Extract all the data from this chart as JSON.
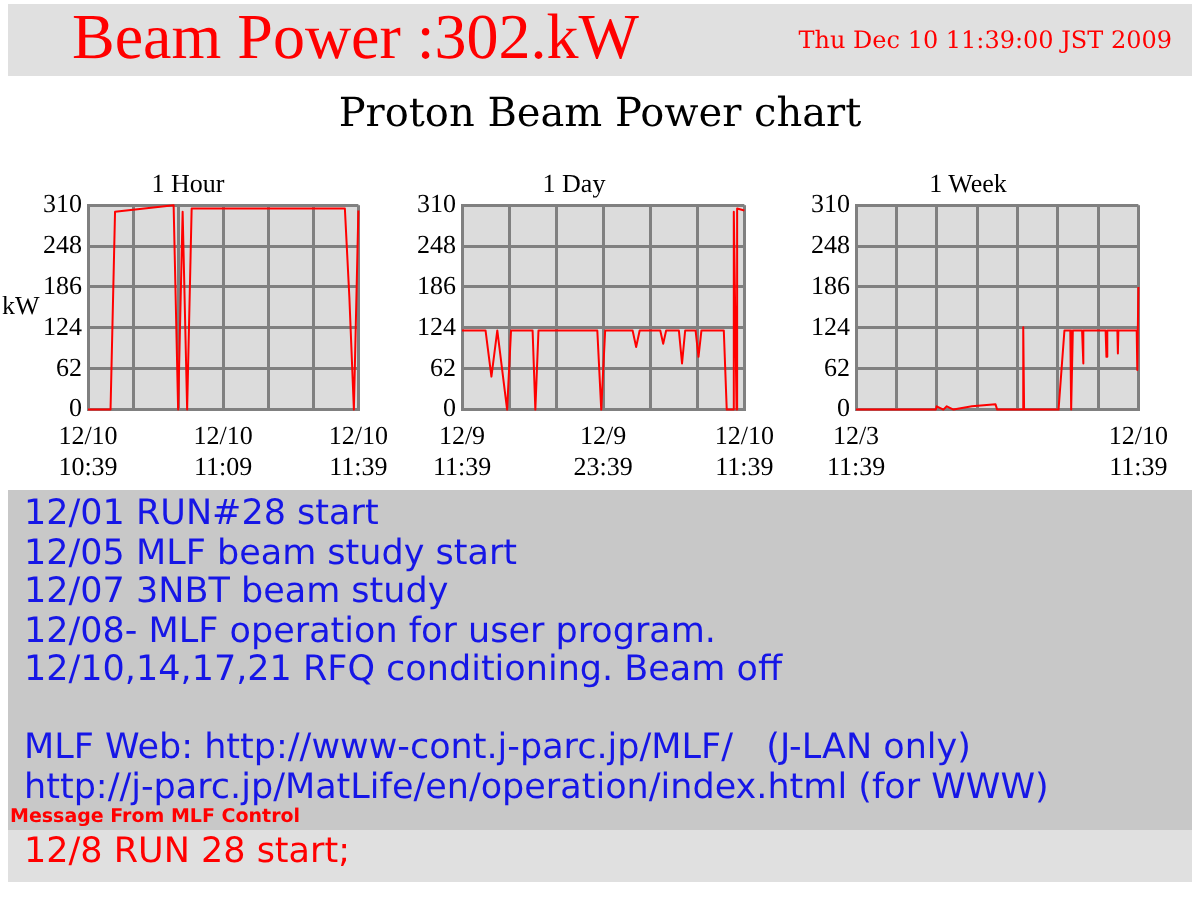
{
  "chart_data": [
    {
      "type": "other",
      "title": "Beam Power :302.kW",
      "subtitle": "Thu Dec 10 11:39:00 JST 2009",
      "annotations": [
        "Proton Beam Power chart"
      ]
    },
    {
      "type": "line",
      "title": "1 Hour",
      "ylabel": "kW",
      "color": "#ff0000",
      "marker": "none",
      "grid": true,
      "xlim": [
        "2009-12-10T10:39",
        "2009-12-10T11:39"
      ],
      "xticks": [
        {
          "value": "2009-12-10T10:39",
          "label": "12/10\n10:39"
        },
        {
          "value": "2009-12-10T10:49",
          "label": null
        },
        {
          "value": "2009-12-10T10:59",
          "label": null
        },
        {
          "value": "2009-12-10T11:09",
          "label": "12/10\n11:09"
        },
        {
          "value": "2009-12-10T11:19",
          "label": null
        },
        {
          "value": "2009-12-10T11:29",
          "label": null
        },
        {
          "value": "2009-12-10T11:39",
          "label": "12/10\n11:39"
        }
      ],
      "ylim": [
        0,
        310
      ],
      "yticks": [
        0,
        62,
        124,
        186,
        248,
        310
      ],
      "x": [
        "2009-12-10T10:39",
        "2009-12-10T10:44",
        "2009-12-10T10:45",
        "2009-12-10T10:58",
        "2009-12-10T10:59",
        "2009-12-10T11:00",
        "2009-12-10T11:01",
        "2009-12-10T11:02",
        "2009-12-10T11:36",
        "2009-12-10T11:37",
        "2009-12-10T11:38",
        "2009-12-10T11:39"
      ],
      "values": [
        0,
        0,
        300,
        310,
        0,
        300,
        0,
        305,
        305,
        170,
        0,
        302
      ]
    },
    {
      "type": "line",
      "title": "1 Day",
      "color": "#ff0000",
      "marker": "none",
      "grid": true,
      "xlim": [
        "2009-12-09T11:39",
        "2009-12-10T11:39"
      ],
      "xticks": [
        {
          "value": "2009-12-09T11:39",
          "label": "12/9\n11:39"
        },
        {
          "value": "2009-12-09T15:39",
          "label": null
        },
        {
          "value": "2009-12-09T19:39",
          "label": null
        },
        {
          "value": "2009-12-09T23:39",
          "label": "12/9\n23:39"
        },
        {
          "value": "2009-12-10T03:39",
          "label": null
        },
        {
          "value": "2009-12-10T07:39",
          "label": null
        },
        {
          "value": "2009-12-10T11:39",
          "label": "12/10\n11:39"
        }
      ],
      "ylim": [
        0,
        310
      ],
      "yticks": [
        0,
        62,
        124,
        186,
        248,
        310
      ],
      "x": [
        "2009-12-09T11:39",
        "2009-12-09T13:39",
        "2009-12-09T14:09",
        "2009-12-09T14:39",
        "2009-12-09T15:29",
        "2009-12-09T15:49",
        "2009-12-09T17:39",
        "2009-12-09T17:53",
        "2009-12-09T18:09",
        "2009-12-09T23:09",
        "2009-12-09T23:29",
        "2009-12-09T23:49",
        "2009-12-10T02:09",
        "2009-12-10T02:27",
        "2009-12-10T02:45",
        "2009-12-10T04:30",
        "2009-12-10T04:45",
        "2009-12-10T05:00",
        "2009-12-10T06:05",
        "2009-12-10T06:21",
        "2009-12-10T06:37",
        "2009-12-10T07:30",
        "2009-12-10T07:45",
        "2009-12-10T08:00",
        "2009-12-10T09:54",
        "2009-12-10T10:09",
        "2009-12-10T10:44",
        "2009-12-10T10:45",
        "2009-12-10T10:59",
        "2009-12-10T11:02",
        "2009-12-10T11:39"
      ],
      "values": [
        120,
        120,
        50,
        120,
        0,
        120,
        120,
        0,
        120,
        120,
        0,
        120,
        120,
        95,
        120,
        120,
        100,
        120,
        120,
        70,
        120,
        120,
        80,
        120,
        120,
        0,
        0,
        300,
        0,
        305,
        302
      ]
    },
    {
      "type": "line",
      "title": "1 Week",
      "color": "#ff0000",
      "marker": "none",
      "grid": true,
      "xlim": [
        "2009-12-03T11:39",
        "2009-12-10T11:39"
      ],
      "xticks": [
        {
          "value": "2009-12-03T11:39",
          "label": "12/3\n11:39"
        },
        {
          "value": "2009-12-04T11:39",
          "label": null
        },
        {
          "value": "2009-12-05T11:39",
          "label": null
        },
        {
          "value": "2009-12-06T11:39",
          "label": null
        },
        {
          "value": "2009-12-07T11:39",
          "label": null
        },
        {
          "value": "2009-12-08T11:39",
          "label": null
        },
        {
          "value": "2009-12-09T11:39",
          "label": null
        },
        {
          "value": "2009-12-10T11:39",
          "label": "12/10\n11:39"
        }
      ],
      "ylim": [
        0,
        310
      ],
      "yticks": [
        0,
        62,
        124,
        186,
        248,
        310
      ],
      "x": [
        "2009-12-03T11:39",
        "2009-12-05T11:09",
        "2009-12-05T11:39",
        "2009-12-05T15:39",
        "2009-12-05T17:39",
        "2009-12-05T21:39",
        "2009-12-06T08:39",
        "2009-12-06T22:39",
        "2009-12-06T23:39",
        "2009-12-07T14:39",
        "2009-12-07T15:09",
        "2009-12-07T15:39",
        "2009-12-08T12:09",
        "2009-12-08T15:39",
        "2009-12-08T19:09",
        "2009-12-08T19:39",
        "2009-12-08T20:39",
        "2009-12-09T02:09",
        "2009-12-09T02:39",
        "2009-12-09T03:09",
        "2009-12-09T16:09",
        "2009-12-09T16:39",
        "2009-12-09T17:09",
        "2009-12-09T23:09",
        "2009-12-09T23:27",
        "2009-12-09T23:45",
        "2009-12-10T10:39",
        "2009-12-10T11:00",
        "2009-12-10T11:39"
      ],
      "values": [
        0,
        0,
        5,
        0,
        5,
        0,
        5,
        8,
        0,
        0,
        125,
        0,
        0,
        120,
        120,
        0,
        120,
        120,
        70,
        120,
        120,
        80,
        120,
        120,
        85,
        120,
        120,
        60,
        186
      ]
    },
    {
      "type": "other",
      "annotations": [
        "12/01 RUN#28 start",
        "12/05 MLF beam study start",
        "12/07 3NBT beam study",
        "12/08- MLF operation for user program.",
        "12/10,14,17,21 RFQ conditioning. Beam off",
        "MLF Web: http://www-cont.j-parc.jp/MLF/   (J-LAN only)",
        "http://j-parc.jp/MatLife/en/operation/index.html (for WWW)"
      ]
    },
    {
      "type": "other",
      "title": "Message From MLF Control",
      "annotations": [
        "12/8 RUN 28 start;"
      ]
    }
  ]
}
